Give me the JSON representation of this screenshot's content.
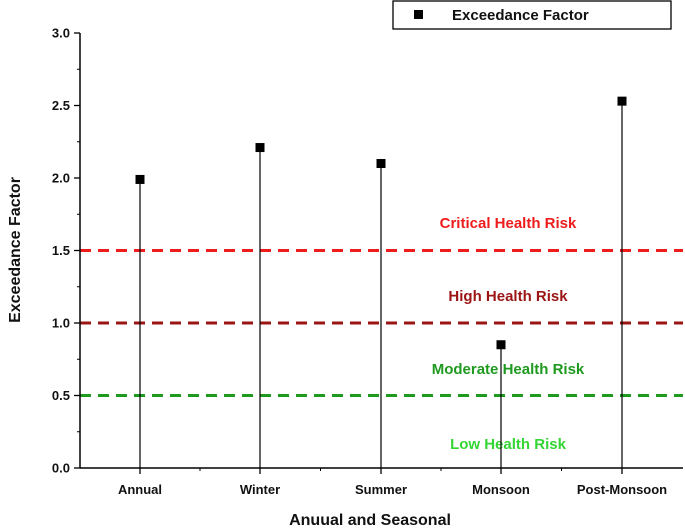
{
  "chart_data": {
    "type": "scatter",
    "style": "drop-lines",
    "categories": [
      "Annual",
      "Winter",
      "Summer",
      "Monsoon",
      "Post-Monsoon"
    ],
    "series": [
      {
        "name": "Exceedance Factor",
        "values": [
          1.99,
          2.21,
          2.1,
          0.85,
          2.53
        ],
        "color": "#000000"
      }
    ],
    "xlabel": "Anuual and Seasonal",
    "ylabel": "Exceedance Factor",
    "ylim": [
      0.0,
      3.0
    ],
    "yticks": [
      "0.0",
      "0.5",
      "1.0",
      "1.5",
      "2.0",
      "2.5",
      "3.0"
    ],
    "thresholds": [
      {
        "value": 1.5,
        "color": "#ee1c1c"
      },
      {
        "value": 1.0,
        "color": "#9b1515"
      },
      {
        "value": 0.5,
        "color": "#1e9a1e"
      }
    ],
    "zones": [
      {
        "label": "Critical Health Risk",
        "level": 1.5,
        "color": "#ee1c1c"
      },
      {
        "label": "High Health Risk",
        "level": 1.0,
        "color": "#9b1515"
      },
      {
        "label": "Moderate Health Risk",
        "level": 0.5,
        "color": "#1e9a1e"
      },
      {
        "label": "Low Health Risk",
        "level": 0.0,
        "color": "#33d633"
      }
    ],
    "legend": {
      "position": "top-right"
    },
    "grid": false
  }
}
